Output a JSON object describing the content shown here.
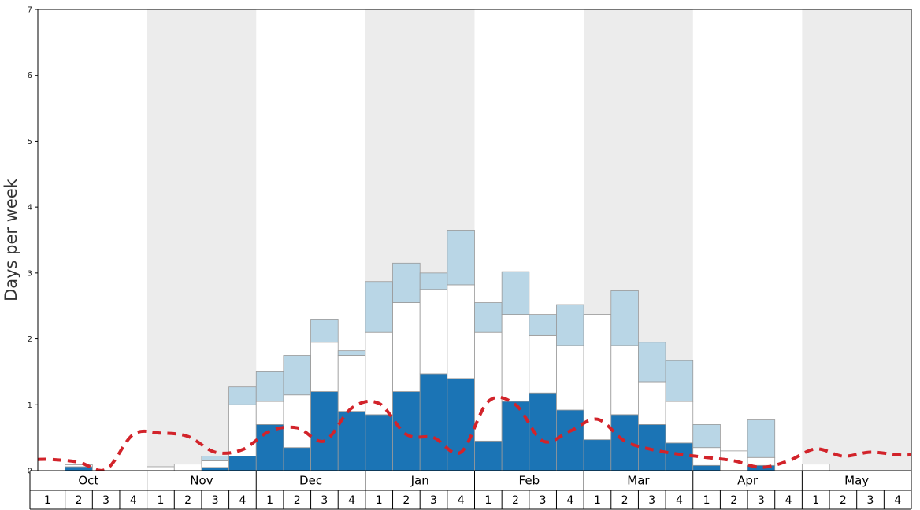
{
  "week_labels": [
    "1",
    "2",
    "3",
    "4"
  ],
  "colors": {
    "dark_blue": "#1b74b5",
    "white": "#ffffff",
    "light_blue": "#b9d6e6",
    "line": "#d2232a",
    "band": "#ececec",
    "bar_outline": "#999999",
    "axis": "#000000"
  },
  "chart_data": {
    "type": "bar",
    "stacked": true,
    "title": "",
    "xlabel": "",
    "ylabel": "Days per week",
    "ylim": [
      0,
      7
    ],
    "y_ticks": [
      0,
      1,
      2,
      3,
      4,
      5,
      6,
      7
    ],
    "grid": false,
    "legend": "none",
    "x_axis": {
      "months": [
        "Oct",
        "Nov",
        "Dec",
        "Jan",
        "Feb",
        "Mar",
        "Apr",
        "May"
      ],
      "weeks_per_month": 4
    },
    "shaded_months": [
      "Nov",
      "Jan",
      "Mar",
      "May"
    ],
    "categories": [
      "Oct 1",
      "Oct 2",
      "Oct 3",
      "Oct 4",
      "Nov 1",
      "Nov 2",
      "Nov 3",
      "Nov 4",
      "Dec 1",
      "Dec 2",
      "Dec 3",
      "Dec 4",
      "Jan 1",
      "Jan 2",
      "Jan 3",
      "Jan 4",
      "Feb 1",
      "Feb 2",
      "Feb 3",
      "Feb 4",
      "Mar 1",
      "Mar 2",
      "Mar 3",
      "Mar 4",
      "Apr 1",
      "Apr 2",
      "Apr 3",
      "Apr 4",
      "May 1",
      "May 2",
      "May 3",
      "May 4"
    ],
    "series": [
      {
        "name": "dark_blue_bars",
        "type": "bar",
        "values": [
          0,
          0.06,
          0,
          0,
          0,
          0,
          0.05,
          0.22,
          0.7,
          0.35,
          1.2,
          0.9,
          0.85,
          1.2,
          1.47,
          1.4,
          0.45,
          1.05,
          1.18,
          0.92,
          0.47,
          0.85,
          0.7,
          0.42,
          0.08,
          0,
          0.08,
          0,
          0,
          0,
          0,
          0
        ]
      },
      {
        "name": "white_bars",
        "type": "bar",
        "values": [
          0,
          0.03,
          0,
          0,
          0.06,
          0.1,
          0.1,
          0.78,
          0.35,
          0.8,
          0.75,
          0.85,
          1.25,
          1.35,
          1.28,
          1.42,
          1.65,
          1.32,
          0.87,
          0.98,
          1.9,
          1.05,
          0.65,
          0.63,
          0.27,
          0.3,
          0.12,
          0,
          0.1,
          0,
          0,
          0
        ]
      },
      {
        "name": "light_blue_bars",
        "type": "bar",
        "values": [
          0,
          0,
          0,
          0,
          0,
          0,
          0.07,
          0.27,
          0.45,
          0.6,
          0.35,
          0.07,
          0.77,
          0.6,
          0.25,
          0.83,
          0.45,
          0.65,
          0.32,
          0.62,
          0,
          0.83,
          0.6,
          0.62,
          0.35,
          0,
          0.57,
          0,
          0,
          0,
          0,
          0
        ]
      },
      {
        "name": "red_dashed_line",
        "type": "line",
        "values": [
          0.17,
          0.13,
          0.02,
          0.55,
          0.57,
          0.52,
          0.28,
          0.32,
          0.6,
          0.65,
          0.45,
          0.95,
          1.02,
          0.55,
          0.5,
          0.28,
          1.05,
          1.0,
          0.45,
          0.6,
          0.78,
          0.45,
          0.32,
          0.25,
          0.2,
          0.15,
          0.05,
          0.15,
          0.33,
          0.22,
          0.28,
          0.24
        ]
      }
    ]
  }
}
